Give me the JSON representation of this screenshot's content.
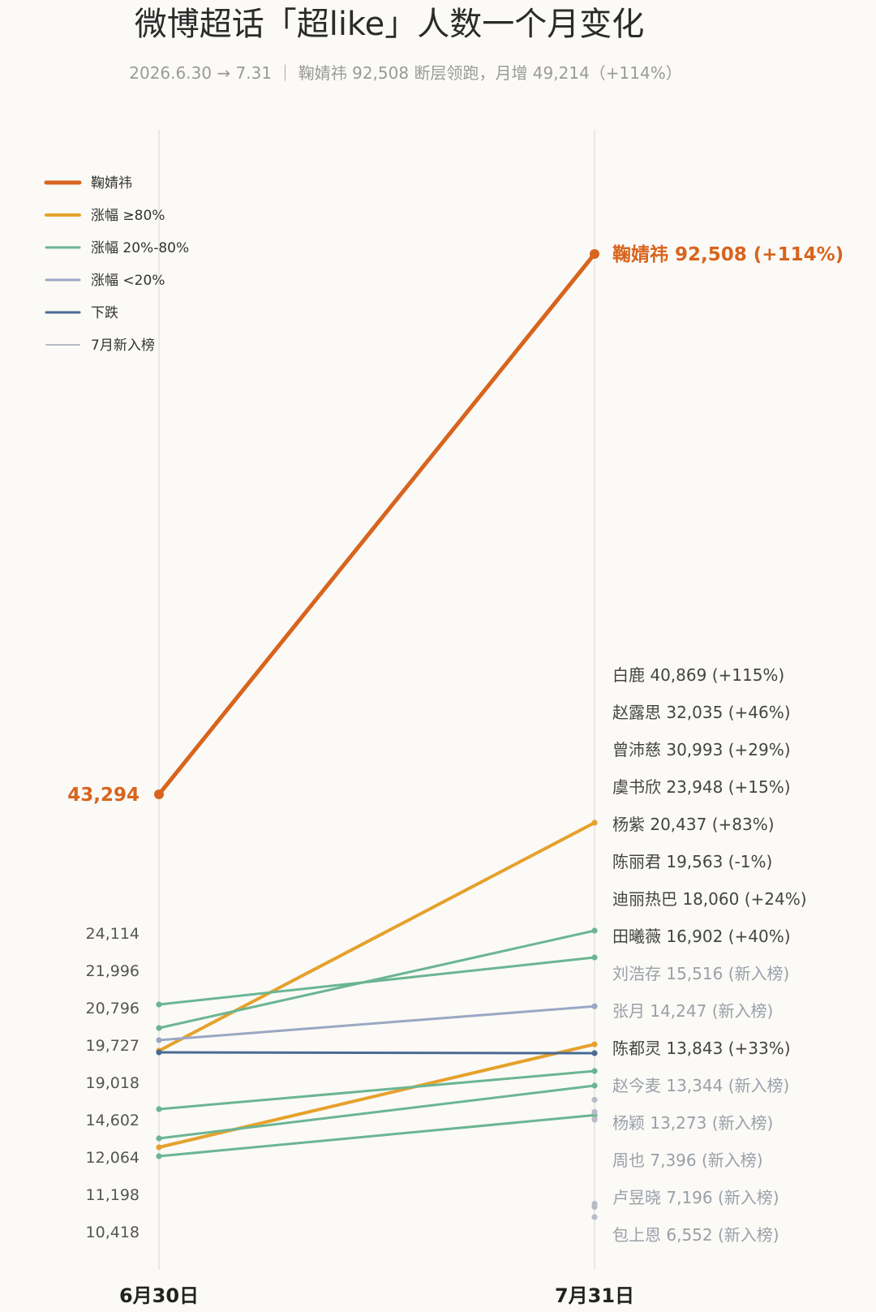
{
  "title": "微博超话「超like」人数一个月变化",
  "subtitle": "2026.6.30 → 7.31 ｜ 鞠婧祎 92,508 断层领跑，月增 49,214（+114%）",
  "colors": {
    "lead": "#d8641d",
    "gt80": "#e6a12c",
    "mid": "#6bb593",
    "low": "#9aa8c4",
    "down": "#4a6a92",
    "new": "#b7bcc6",
    "axis": "#dcdcdc"
  },
  "legend": [
    {
      "label": "鞠婧祎",
      "color": "#d8641d",
      "width": 5
    },
    {
      "label": "涨幅 ≥80%",
      "color": "#e6a12c",
      "width": 4
    },
    {
      "label": "涨幅 20%-80%",
      "color": "#6bb593",
      "width": 3
    },
    {
      "label": "涨幅 <20%",
      "color": "#9aa8c4",
      "width": 3
    },
    {
      "label": "下跌",
      "color": "#4a6a92",
      "width": 3
    },
    {
      "label": "7月新入榜",
      "color": "#b7bcc6",
      "width": 2
    }
  ],
  "chart_data": {
    "type": "line",
    "subtype": "slope",
    "x": [
      "6月30日",
      "7月31日"
    ],
    "left_tick_labels": [
      "24,114",
      "21,996",
      "20,796",
      "19,727",
      "19,018",
      "14,602",
      "12,064",
      "11,198",
      "10,418"
    ],
    "lead": {
      "name": "鞠婧祎",
      "start_label": "43,294",
      "end_label": "92,508",
      "pct": "(+114%)",
      "values": [
        43294,
        92508
      ]
    },
    "right_labels": [
      "白鹿 40,869 (+115%)",
      "赵露思 32,035 (+46%)",
      "曾沛慈 30,993 (+29%)",
      "虞书欣 23,948 (+15%)",
      "杨紫 20,437 (+83%)",
      "陈丽君 19,563 (-1%)",
      "迪丽热巴 18,060 (+24%)",
      "田曦薇 16,902 (+40%)",
      "刘浩存 15,516 (新入榜)",
      "张月 14,247 (新入榜)",
      "陈都灵 13,843 (+33%)",
      "赵今麦 13,344 (新入榜)",
      "杨颖 13,273 (新入榜)",
      "周也 7,396 (新入榜)",
      "卢昱晓 7,196 (新入榜)",
      "包上恩 6,552 (新入榜)"
    ],
    "right_label_new_flags": [
      false,
      false,
      false,
      false,
      false,
      false,
      false,
      false,
      true,
      true,
      false,
      true,
      true,
      true,
      true,
      true
    ],
    "series": [
      {
        "name": "白鹿",
        "values": [
          19018,
          40869
        ],
        "category": "gt80"
      },
      {
        "name": "赵露思",
        "values": [
          21996,
          32035
        ],
        "category": "mid"
      },
      {
        "name": "曾沛慈",
        "values": [
          24114,
          30993
        ],
        "category": "mid"
      },
      {
        "name": "虞书欣",
        "values": [
          20796,
          23948
        ],
        "category": "low"
      },
      {
        "name": "杨紫",
        "values": [
          11198,
          20437
        ],
        "category": "gt80"
      },
      {
        "name": "陈丽君",
        "values": [
          19727,
          19563
        ],
        "category": "down"
      },
      {
        "name": "迪丽热巴",
        "values": [
          14602,
          18060
        ],
        "category": "mid"
      },
      {
        "name": "田曦薇",
        "values": [
          12064,
          16902
        ],
        "category": "mid"
      },
      {
        "name": "陈都灵",
        "values": [
          10418,
          13843
        ],
        "category": "mid"
      },
      {
        "name": "刘浩存",
        "values": [
          null,
          15516
        ],
        "category": "new"
      },
      {
        "name": "张月",
        "values": [
          null,
          14247
        ],
        "category": "new"
      },
      {
        "name": "赵今麦",
        "values": [
          null,
          13344
        ],
        "category": "new"
      },
      {
        "name": "杨颖",
        "values": [
          null,
          13273
        ],
        "category": "new"
      },
      {
        "name": "周也",
        "values": [
          null,
          7396
        ],
        "category": "new"
      },
      {
        "name": "卢昱晓",
        "values": [
          null,
          7196
        ],
        "category": "new"
      },
      {
        "name": "包上恩",
        "values": [
          null,
          6552
        ],
        "category": "new"
      }
    ]
  }
}
